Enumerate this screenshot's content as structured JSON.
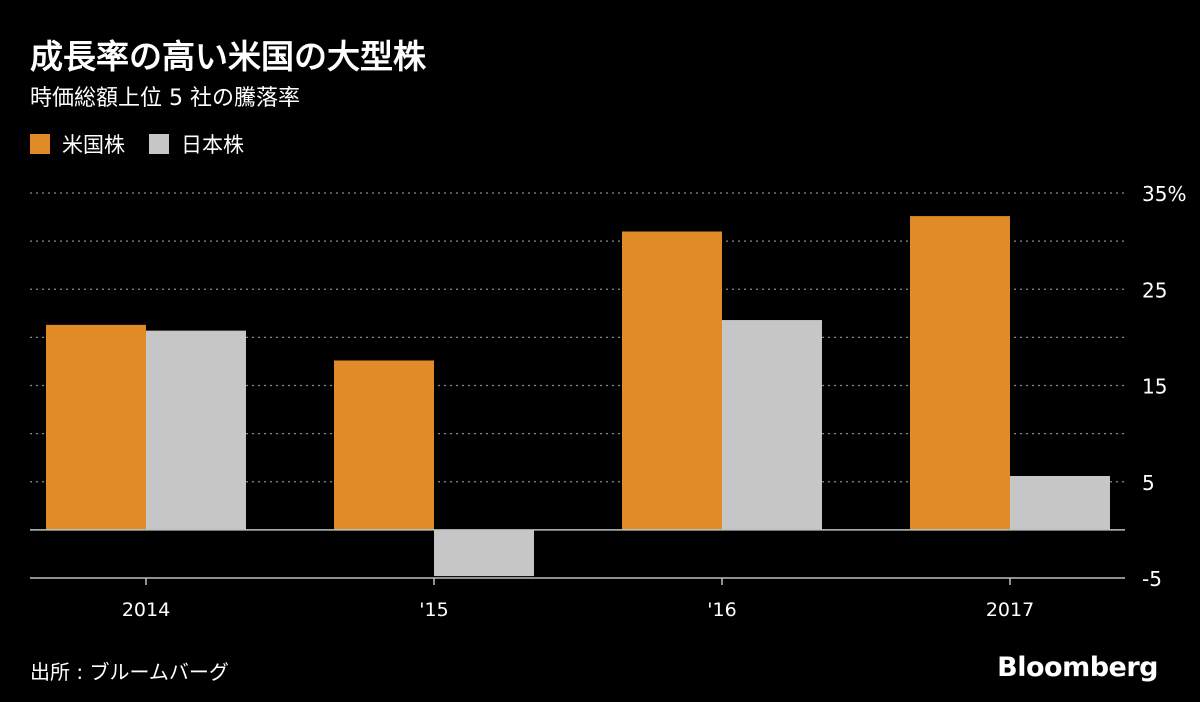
{
  "header": {
    "title": "成長率の高い米国の大型株",
    "subtitle": "時価総額上位 5 社の騰落率"
  },
  "footer": {
    "source": "出所 : ブルームバーグ",
    "brand": "Bloomberg"
  },
  "colors": {
    "background": "#000000",
    "us_series": "#e08b25",
    "japan_series": "#c6c6c6",
    "grid": "#8a8a8a",
    "axis": "#bfbfbf"
  },
  "chart_data": {
    "type": "bar",
    "categories": [
      "2014",
      "'15",
      "'16",
      "2017"
    ],
    "series": [
      {
        "name": "米国株",
        "values": [
          21.3,
          17.6,
          31.0,
          32.6
        ]
      },
      {
        "name": "日本株",
        "values": [
          20.7,
          -4.8,
          21.8,
          5.6
        ]
      }
    ],
    "ylim": [
      -5,
      35
    ],
    "yticks": [
      35,
      25,
      15,
      5,
      -5
    ],
    "ytick_labels": [
      "35%",
      "25",
      "15",
      "5",
      "-5"
    ],
    "grid": true,
    "legend_position": "top-left",
    "y_axis_side": "right"
  }
}
